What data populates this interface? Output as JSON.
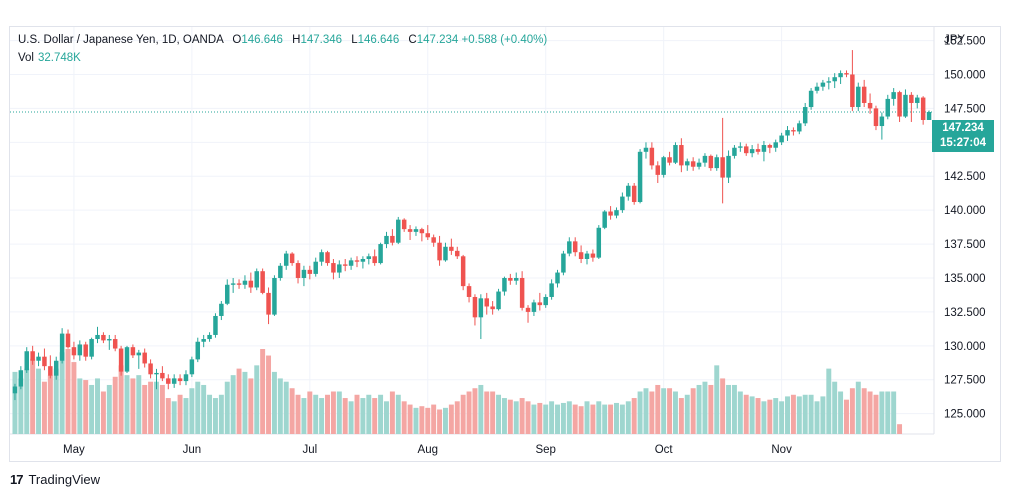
{
  "legend": {
    "symbol": "U.S. Dollar / Japanese Yen, 1D, OANDA",
    "o_label": "O",
    "o": "146.646",
    "h_label": "H",
    "h": "147.346",
    "l_label": "L",
    "l": "146.646",
    "c_label": "C",
    "c": "147.234",
    "change": "+0.588 (+0.40%)",
    "vol_label": "Vol",
    "vol": "32.748K"
  },
  "price_tag": {
    "price": "147.234",
    "countdown": "15:27:04"
  },
  "brand": {
    "logo": "17",
    "name": "TradingView"
  },
  "colors": {
    "up": "#26a69a",
    "down": "#ef5350",
    "up_vol": "#9ed6cf",
    "down_vol": "#f4a6a3",
    "grid": "#f0f3fa",
    "text": "#131722"
  },
  "chart_data": {
    "type": "candlestick",
    "ylabel": "JPY",
    "ylim": [
      123.5,
      153.5
    ],
    "current_price": 147.234,
    "y_ticks": [
      "125.000",
      "127.500",
      "130.000",
      "132.500",
      "135.000",
      "137.500",
      "140.000",
      "142.500",
      "145.000",
      "147.500",
      "150.000",
      "152.500"
    ],
    "x_ticks": [
      "May",
      "Jun",
      "Jul",
      "Aug",
      "Sep",
      "Oct",
      "Nov"
    ],
    "x_tick_index": [
      10,
      30,
      50,
      70,
      90,
      110,
      130
    ],
    "candles": [
      [
        126.5,
        127.2,
        126.0,
        127.0
      ],
      [
        127.0,
        128.5,
        126.8,
        128.2
      ],
      [
        128.2,
        129.9,
        128.0,
        129.6
      ],
      [
        129.6,
        130.0,
        128.6,
        128.9
      ],
      [
        128.9,
        129.5,
        128.5,
        129.2
      ],
      [
        129.2,
        129.8,
        128.2,
        128.5
      ],
      [
        128.5,
        129.3,
        127.6,
        127.8
      ],
      [
        127.8,
        129.2,
        127.5,
        128.9
      ],
      [
        128.9,
        131.3,
        128.7,
        130.9
      ],
      [
        130.9,
        131.2,
        129.8,
        129.9
      ],
      [
        129.9,
        130.3,
        129.0,
        129.3
      ],
      [
        129.3,
        130.4,
        128.9,
        130.1
      ],
      [
        130.1,
        130.3,
        128.9,
        129.2
      ],
      [
        129.2,
        130.6,
        129.0,
        130.5
      ],
      [
        130.5,
        131.4,
        130.2,
        130.8
      ],
      [
        130.8,
        131.0,
        130.2,
        130.4
      ],
      [
        130.4,
        130.8,
        129.7,
        130.5
      ],
      [
        130.5,
        130.8,
        129.6,
        129.8
      ],
      [
        129.8,
        130.0,
        127.8,
        128.1
      ],
      [
        128.1,
        130.0,
        128.0,
        129.9
      ],
      [
        129.9,
        130.1,
        129.1,
        129.3
      ],
      [
        129.3,
        129.7,
        128.3,
        129.5
      ],
      [
        129.5,
        129.8,
        128.4,
        128.7
      ],
      [
        128.7,
        129.0,
        127.6,
        127.9
      ],
      [
        127.9,
        128.3,
        126.8,
        128.0
      ],
      [
        128.0,
        128.5,
        127.4,
        127.6
      ],
      [
        127.6,
        127.9,
        126.8,
        127.2
      ],
      [
        127.2,
        127.9,
        126.9,
        127.6
      ],
      [
        127.6,
        127.9,
        127.1,
        127.4
      ],
      [
        127.4,
        128.2,
        127.1,
        127.9
      ],
      [
        127.9,
        129.2,
        127.7,
        129.0
      ],
      [
        129.0,
        130.6,
        128.8,
        130.3
      ],
      [
        130.3,
        130.8,
        129.9,
        130.5
      ],
      [
        130.5,
        131.0,
        130.3,
        130.8
      ],
      [
        130.8,
        132.4,
        130.6,
        132.2
      ],
      [
        132.2,
        133.3,
        131.9,
        133.1
      ],
      [
        133.1,
        134.9,
        133.0,
        134.5
      ],
      [
        134.5,
        135.0,
        133.9,
        134.6
      ],
      [
        134.6,
        134.9,
        134.2,
        134.5
      ],
      [
        134.5,
        135.2,
        134.2,
        134.8
      ],
      [
        134.8,
        135.4,
        133.9,
        134.3
      ],
      [
        134.3,
        135.7,
        134.1,
        135.5
      ],
      [
        135.5,
        135.7,
        133.8,
        133.9
      ],
      [
        133.9,
        134.3,
        131.6,
        132.3
      ],
      [
        132.3,
        135.2,
        132.2,
        135.0
      ],
      [
        135.0,
        136.1,
        134.8,
        135.9
      ],
      [
        135.9,
        137.0,
        135.6,
        136.8
      ],
      [
        136.8,
        136.9,
        135.9,
        136.1
      ],
      [
        136.1,
        136.3,
        134.6,
        135.0
      ],
      [
        135.0,
        135.9,
        134.4,
        135.6
      ],
      [
        135.6,
        135.9,
        134.9,
        135.3
      ],
      [
        135.3,
        136.5,
        135.1,
        136.2
      ],
      [
        136.2,
        137.1,
        135.9,
        136.9
      ],
      [
        136.9,
        137.0,
        135.9,
        136.1
      ],
      [
        136.1,
        136.4,
        134.9,
        135.4
      ],
      [
        135.4,
        136.3,
        135.0,
        136.0
      ],
      [
        136.0,
        136.4,
        135.5,
        135.9
      ],
      [
        135.9,
        136.5,
        135.6,
        136.3
      ],
      [
        136.3,
        136.6,
        135.8,
        136.2
      ],
      [
        136.2,
        136.6,
        135.7,
        136.4
      ],
      [
        136.4,
        136.8,
        136.0,
        136.6
      ],
      [
        136.6,
        137.1,
        135.9,
        136.1
      ],
      [
        136.1,
        137.6,
        136.0,
        137.5
      ],
      [
        137.5,
        138.4,
        137.2,
        138.1
      ],
      [
        138.1,
        138.6,
        137.4,
        137.6
      ],
      [
        137.6,
        139.5,
        137.5,
        139.3
      ],
      [
        139.3,
        139.4,
        138.4,
        138.6
      ],
      [
        138.6,
        138.9,
        137.8,
        138.4
      ],
      [
        138.4,
        138.8,
        138.1,
        138.6
      ],
      [
        138.6,
        138.7,
        137.7,
        138.3
      ],
      [
        138.3,
        138.9,
        137.8,
        138.0
      ],
      [
        138.0,
        138.2,
        137.3,
        137.6
      ],
      [
        137.6,
        138.1,
        135.9,
        136.3
      ],
      [
        136.3,
        137.6,
        136.2,
        137.3
      ],
      [
        137.3,
        137.9,
        136.7,
        137.0
      ],
      [
        137.0,
        137.3,
        136.4,
        136.6
      ],
      [
        136.6,
        136.7,
        134.1,
        134.4
      ],
      [
        134.4,
        134.6,
        133.2,
        133.6
      ],
      [
        133.6,
        133.8,
        131.5,
        132.1
      ],
      [
        132.1,
        133.8,
        130.5,
        133.5
      ],
      [
        133.5,
        133.9,
        132.3,
        132.9
      ],
      [
        132.9,
        133.3,
        132.3,
        132.7
      ],
      [
        132.7,
        134.2,
        132.6,
        134.0
      ],
      [
        134.0,
        135.1,
        133.7,
        135.0
      ],
      [
        135.0,
        135.3,
        134.5,
        134.8
      ],
      [
        134.8,
        135.4,
        134.5,
        135.0
      ],
      [
        135.0,
        135.5,
        132.6,
        132.8
      ],
      [
        132.8,
        133.0,
        131.7,
        132.5
      ],
      [
        132.5,
        133.4,
        132.2,
        133.2
      ],
      [
        133.2,
        133.9,
        132.6,
        133.0
      ],
      [
        133.0,
        133.8,
        132.8,
        133.6
      ],
      [
        133.6,
        134.9,
        133.4,
        134.6
      ],
      [
        134.6,
        135.6,
        134.3,
        135.4
      ],
      [
        135.4,
        137.0,
        135.2,
        136.8
      ],
      [
        136.8,
        138.0,
        136.6,
        137.7
      ],
      [
        137.7,
        138.0,
        136.6,
        136.9
      ],
      [
        136.9,
        137.4,
        136.1,
        136.4
      ],
      [
        136.4,
        137.0,
        136.0,
        136.8
      ],
      [
        136.8,
        137.1,
        136.2,
        136.5
      ],
      [
        136.5,
        138.9,
        136.4,
        138.7
      ],
      [
        138.7,
        140.0,
        138.6,
        139.9
      ],
      [
        139.9,
        140.3,
        139.3,
        139.6
      ],
      [
        139.6,
        140.2,
        139.4,
        140.0
      ],
      [
        140.0,
        141.3,
        139.8,
        141.0
      ],
      [
        141.0,
        142.0,
        140.7,
        141.8
      ],
      [
        141.8,
        142.0,
        140.4,
        140.6
      ],
      [
        140.6,
        144.5,
        140.5,
        144.3
      ],
      [
        144.3,
        145.0,
        143.8,
        144.6
      ],
      [
        144.6,
        145.0,
        143.0,
        143.3
      ],
      [
        143.3,
        143.6,
        142.0,
        142.6
      ],
      [
        142.6,
        144.0,
        142.4,
        143.9
      ],
      [
        143.9,
        144.3,
        143.3,
        143.5
      ],
      [
        143.5,
        145.0,
        143.4,
        144.8
      ],
      [
        144.8,
        145.3,
        142.8,
        143.3
      ],
      [
        143.3,
        143.8,
        142.9,
        143.6
      ],
      [
        143.6,
        143.9,
        142.9,
        143.2
      ],
      [
        143.2,
        143.8,
        143.0,
        143.5
      ],
      [
        143.5,
        144.2,
        143.2,
        144.0
      ],
      [
        144.0,
        144.1,
        142.9,
        143.1
      ],
      [
        143.1,
        144.1,
        142.9,
        143.9
      ],
      [
        143.9,
        146.8,
        140.5,
        142.4
      ],
      [
        142.4,
        144.4,
        142.0,
        144.0
      ],
      [
        144.0,
        144.8,
        143.8,
        144.6
      ],
      [
        144.6,
        145.0,
        144.3,
        144.7
      ],
      [
        144.7,
        144.9,
        144.0,
        144.2
      ],
      [
        144.2,
        144.8,
        143.9,
        144.5
      ],
      [
        144.5,
        144.9,
        144.1,
        144.3
      ],
      [
        144.3,
        145.1,
        143.6,
        144.8
      ],
      [
        144.8,
        144.9,
        144.2,
        144.6
      ],
      [
        144.6,
        145.2,
        144.3,
        145.0
      ],
      [
        145.0,
        145.7,
        144.8,
        145.5
      ],
      [
        145.5,
        146.2,
        145.1,
        145.9
      ],
      [
        145.9,
        146.1,
        145.5,
        145.8
      ],
      [
        145.8,
        146.6,
        145.6,
        146.4
      ],
      [
        146.4,
        147.9,
        146.2,
        147.6
      ],
      [
        147.6,
        149.0,
        147.4,
        148.8
      ],
      [
        148.8,
        149.4,
        148.6,
        149.1
      ],
      [
        149.1,
        149.6,
        148.8,
        149.4
      ],
      [
        149.4,
        149.8,
        148.9,
        149.5
      ],
      [
        149.5,
        150.1,
        149.0,
        149.8
      ],
      [
        149.8,
        150.3,
        149.3,
        150.1
      ],
      [
        150.1,
        150.3,
        149.8,
        150.0
      ],
      [
        150.0,
        151.8,
        147.3,
        147.6
      ],
      [
        147.6,
        149.4,
        147.3,
        149.1
      ],
      [
        149.1,
        149.6,
        147.6,
        147.9
      ],
      [
        147.9,
        148.6,
        147.1,
        147.5
      ],
      [
        147.5,
        147.7,
        145.9,
        146.2
      ],
      [
        146.2,
        147.2,
        145.2,
        146.9
      ],
      [
        146.9,
        148.5,
        146.7,
        148.2
      ],
      [
        148.2,
        149.0,
        147.7,
        148.7
      ],
      [
        148.7,
        148.8,
        146.5,
        146.9
      ],
      [
        146.9,
        148.9,
        146.8,
        148.5
      ],
      [
        148.5,
        148.7,
        146.5,
        147.9
      ],
      [
        147.9,
        148.5,
        147.5,
        148.3
      ],
      [
        148.3,
        148.4,
        146.3,
        146.646
      ],
      [
        146.646,
        147.346,
        146.646,
        147.234
      ]
    ],
    "volume_rel": [
      0.38,
      0.34,
      0.4,
      0.46,
      0.4,
      0.32,
      0.36,
      0.4,
      0.5,
      0.52,
      0.44,
      0.34,
      0.33,
      0.3,
      0.34,
      0.26,
      0.3,
      0.35,
      0.42,
      0.36,
      0.34,
      0.36,
      0.3,
      0.32,
      0.32,
      0.3,
      0.22,
      0.2,
      0.24,
      0.22,
      0.28,
      0.32,
      0.3,
      0.24,
      0.22,
      0.24,
      0.32,
      0.36,
      0.4,
      0.38,
      0.34,
      0.42,
      0.52,
      0.48,
      0.38,
      0.34,
      0.32,
      0.28,
      0.24,
      0.22,
      0.26,
      0.24,
      0.22,
      0.24,
      0.26,
      0.26,
      0.22,
      0.2,
      0.24,
      0.22,
      0.24,
      0.22,
      0.24,
      0.2,
      0.26,
      0.24,
      0.2,
      0.18,
      0.16,
      0.17,
      0.16,
      0.18,
      0.15,
      0.16,
      0.18,
      0.2,
      0.24,
      0.26,
      0.28,
      0.3,
      0.26,
      0.26,
      0.24,
      0.22,
      0.21,
      0.2,
      0.22,
      0.2,
      0.18,
      0.19,
      0.18,
      0.2,
      0.18,
      0.19,
      0.2,
      0.18,
      0.17,
      0.2,
      0.18,
      0.2,
      0.18,
      0.18,
      0.19,
      0.18,
      0.2,
      0.22,
      0.26,
      0.28,
      0.26,
      0.3,
      0.28,
      0.28,
      0.26,
      0.22,
      0.24,
      0.28,
      0.3,
      0.32,
      0.3,
      0.42,
      0.34,
      0.3,
      0.3,
      0.26,
      0.24,
      0.23,
      0.22,
      0.2,
      0.21,
      0.22,
      0.2,
      0.23,
      0.24,
      0.23,
      0.24,
      0.24,
      0.2,
      0.23,
      0.4,
      0.32,
      0.26,
      0.21,
      0.28,
      0.32,
      0.28,
      0.26,
      0.24,
      0.26,
      0.26,
      0.26,
      0.06
    ]
  }
}
